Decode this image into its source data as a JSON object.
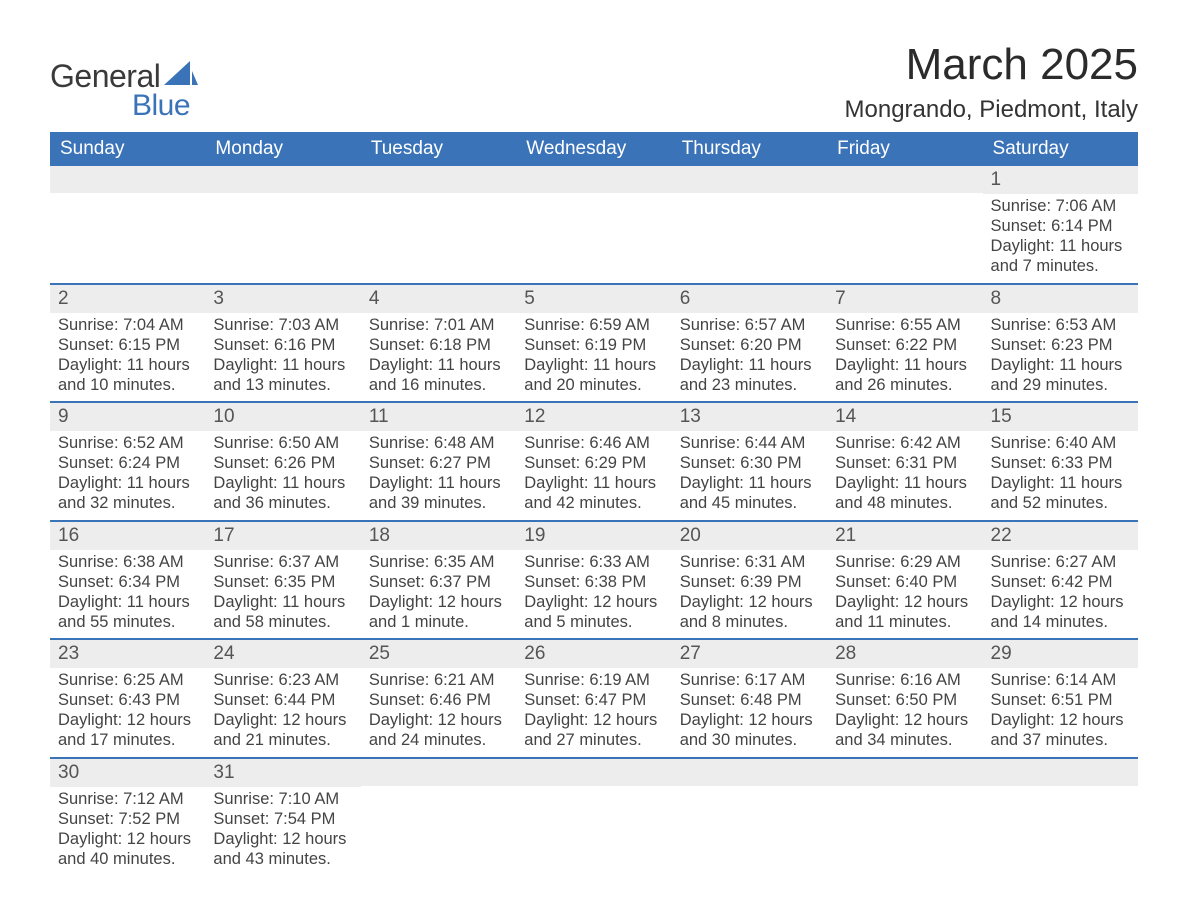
{
  "logo": {
    "text_general": "General",
    "text_blue": "Blue",
    "shape_color": "#3b73b9",
    "text_dark": "#3a3a3a"
  },
  "title": "March 2025",
  "location": "Mongrando, Piedmont, Italy",
  "colors": {
    "header_bg": "#3b73b9",
    "header_text": "#ffffff",
    "daynum_bg": "#ededed",
    "row_border": "#3b73b9",
    "body_text": "#444444",
    "title_text": "#2b2b2b",
    "background": "#ffffff"
  },
  "typography": {
    "title_fontsize": 44,
    "location_fontsize": 24,
    "header_fontsize": 19,
    "daynum_fontsize": 19,
    "body_fontsize": 16.5,
    "font_family": "Arial"
  },
  "layout": {
    "columns": 7,
    "rows": 6,
    "col_width_pct": 14.2857
  },
  "weekdays": [
    "Sunday",
    "Monday",
    "Tuesday",
    "Wednesday",
    "Thursday",
    "Friday",
    "Saturday"
  ],
  "weeks": [
    [
      {
        "n": "",
        "sr": "",
        "ss": "",
        "dl": ""
      },
      {
        "n": "",
        "sr": "",
        "ss": "",
        "dl": ""
      },
      {
        "n": "",
        "sr": "",
        "ss": "",
        "dl": ""
      },
      {
        "n": "",
        "sr": "",
        "ss": "",
        "dl": ""
      },
      {
        "n": "",
        "sr": "",
        "ss": "",
        "dl": ""
      },
      {
        "n": "",
        "sr": "",
        "ss": "",
        "dl": ""
      },
      {
        "n": "1",
        "sr": "Sunrise: 7:06 AM",
        "ss": "Sunset: 6:14 PM",
        "dl": "Daylight: 11 hours and 7 minutes."
      }
    ],
    [
      {
        "n": "2",
        "sr": "Sunrise: 7:04 AM",
        "ss": "Sunset: 6:15 PM",
        "dl": "Daylight: 11 hours and 10 minutes."
      },
      {
        "n": "3",
        "sr": "Sunrise: 7:03 AM",
        "ss": "Sunset: 6:16 PM",
        "dl": "Daylight: 11 hours and 13 minutes."
      },
      {
        "n": "4",
        "sr": "Sunrise: 7:01 AM",
        "ss": "Sunset: 6:18 PM",
        "dl": "Daylight: 11 hours and 16 minutes."
      },
      {
        "n": "5",
        "sr": "Sunrise: 6:59 AM",
        "ss": "Sunset: 6:19 PM",
        "dl": "Daylight: 11 hours and 20 minutes."
      },
      {
        "n": "6",
        "sr": "Sunrise: 6:57 AM",
        "ss": "Sunset: 6:20 PM",
        "dl": "Daylight: 11 hours and 23 minutes."
      },
      {
        "n": "7",
        "sr": "Sunrise: 6:55 AM",
        "ss": "Sunset: 6:22 PM",
        "dl": "Daylight: 11 hours and 26 minutes."
      },
      {
        "n": "8",
        "sr": "Sunrise: 6:53 AM",
        "ss": "Sunset: 6:23 PM",
        "dl": "Daylight: 11 hours and 29 minutes."
      }
    ],
    [
      {
        "n": "9",
        "sr": "Sunrise: 6:52 AM",
        "ss": "Sunset: 6:24 PM",
        "dl": "Daylight: 11 hours and 32 minutes."
      },
      {
        "n": "10",
        "sr": "Sunrise: 6:50 AM",
        "ss": "Sunset: 6:26 PM",
        "dl": "Daylight: 11 hours and 36 minutes."
      },
      {
        "n": "11",
        "sr": "Sunrise: 6:48 AM",
        "ss": "Sunset: 6:27 PM",
        "dl": "Daylight: 11 hours and 39 minutes."
      },
      {
        "n": "12",
        "sr": "Sunrise: 6:46 AM",
        "ss": "Sunset: 6:29 PM",
        "dl": "Daylight: 11 hours and 42 minutes."
      },
      {
        "n": "13",
        "sr": "Sunrise: 6:44 AM",
        "ss": "Sunset: 6:30 PM",
        "dl": "Daylight: 11 hours and 45 minutes."
      },
      {
        "n": "14",
        "sr": "Sunrise: 6:42 AM",
        "ss": "Sunset: 6:31 PM",
        "dl": "Daylight: 11 hours and 48 minutes."
      },
      {
        "n": "15",
        "sr": "Sunrise: 6:40 AM",
        "ss": "Sunset: 6:33 PM",
        "dl": "Daylight: 11 hours and 52 minutes."
      }
    ],
    [
      {
        "n": "16",
        "sr": "Sunrise: 6:38 AM",
        "ss": "Sunset: 6:34 PM",
        "dl": "Daylight: 11 hours and 55 minutes."
      },
      {
        "n": "17",
        "sr": "Sunrise: 6:37 AM",
        "ss": "Sunset: 6:35 PM",
        "dl": "Daylight: 11 hours and 58 minutes."
      },
      {
        "n": "18",
        "sr": "Sunrise: 6:35 AM",
        "ss": "Sunset: 6:37 PM",
        "dl": "Daylight: 12 hours and 1 minute."
      },
      {
        "n": "19",
        "sr": "Sunrise: 6:33 AM",
        "ss": "Sunset: 6:38 PM",
        "dl": "Daylight: 12 hours and 5 minutes."
      },
      {
        "n": "20",
        "sr": "Sunrise: 6:31 AM",
        "ss": "Sunset: 6:39 PM",
        "dl": "Daylight: 12 hours and 8 minutes."
      },
      {
        "n": "21",
        "sr": "Sunrise: 6:29 AM",
        "ss": "Sunset: 6:40 PM",
        "dl": "Daylight: 12 hours and 11 minutes."
      },
      {
        "n": "22",
        "sr": "Sunrise: 6:27 AM",
        "ss": "Sunset: 6:42 PM",
        "dl": "Daylight: 12 hours and 14 minutes."
      }
    ],
    [
      {
        "n": "23",
        "sr": "Sunrise: 6:25 AM",
        "ss": "Sunset: 6:43 PM",
        "dl": "Daylight: 12 hours and 17 minutes."
      },
      {
        "n": "24",
        "sr": "Sunrise: 6:23 AM",
        "ss": "Sunset: 6:44 PM",
        "dl": "Daylight: 12 hours and 21 minutes."
      },
      {
        "n": "25",
        "sr": "Sunrise: 6:21 AM",
        "ss": "Sunset: 6:46 PM",
        "dl": "Daylight: 12 hours and 24 minutes."
      },
      {
        "n": "26",
        "sr": "Sunrise: 6:19 AM",
        "ss": "Sunset: 6:47 PM",
        "dl": "Daylight: 12 hours and 27 minutes."
      },
      {
        "n": "27",
        "sr": "Sunrise: 6:17 AM",
        "ss": "Sunset: 6:48 PM",
        "dl": "Daylight: 12 hours and 30 minutes."
      },
      {
        "n": "28",
        "sr": "Sunrise: 6:16 AM",
        "ss": "Sunset: 6:50 PM",
        "dl": "Daylight: 12 hours and 34 minutes."
      },
      {
        "n": "29",
        "sr": "Sunrise: 6:14 AM",
        "ss": "Sunset: 6:51 PM",
        "dl": "Daylight: 12 hours and 37 minutes."
      }
    ],
    [
      {
        "n": "30",
        "sr": "Sunrise: 7:12 AM",
        "ss": "Sunset: 7:52 PM",
        "dl": "Daylight: 12 hours and 40 minutes."
      },
      {
        "n": "31",
        "sr": "Sunrise: 7:10 AM",
        "ss": "Sunset: 7:54 PM",
        "dl": "Daylight: 12 hours and 43 minutes."
      },
      {
        "n": "",
        "sr": "",
        "ss": "",
        "dl": ""
      },
      {
        "n": "",
        "sr": "",
        "ss": "",
        "dl": ""
      },
      {
        "n": "",
        "sr": "",
        "ss": "",
        "dl": ""
      },
      {
        "n": "",
        "sr": "",
        "ss": "",
        "dl": ""
      },
      {
        "n": "",
        "sr": "",
        "ss": "",
        "dl": ""
      }
    ]
  ]
}
